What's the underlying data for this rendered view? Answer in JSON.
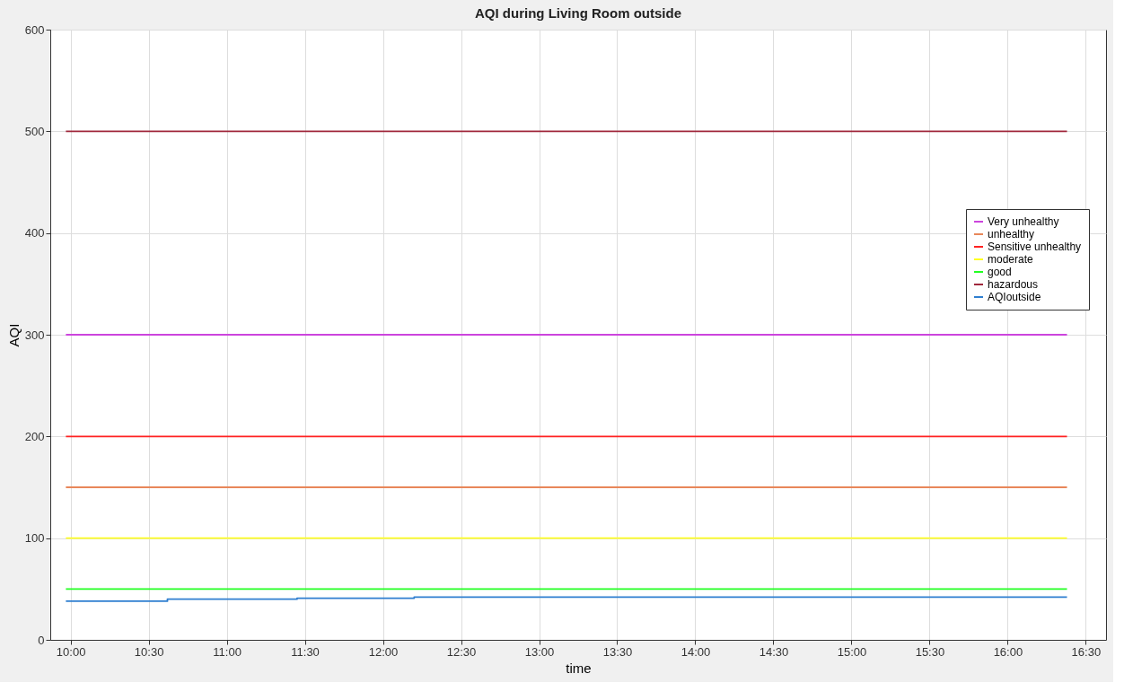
{
  "chart_data": {
    "type": "line",
    "title": "AQI during Living Room outside",
    "xlabel": "time",
    "ylabel": "AQI",
    "xlim": [
      9.87,
      16.63
    ],
    "ylim": [
      0,
      600
    ],
    "xticks": [
      {
        "value": 10,
        "label": "10:00"
      },
      {
        "value": 10.5,
        "label": "10:30"
      },
      {
        "value": 11,
        "label": "11:00"
      },
      {
        "value": 11.5,
        "label": "11:30"
      },
      {
        "value": 12,
        "label": "12:00"
      },
      {
        "value": 12.5,
        "label": "12:30"
      },
      {
        "value": 13,
        "label": "13:00"
      },
      {
        "value": 13.5,
        "label": "13:30"
      },
      {
        "value": 14,
        "label": "14:00"
      },
      {
        "value": 14.5,
        "label": "14:30"
      },
      {
        "value": 15,
        "label": "15:00"
      },
      {
        "value": 15.5,
        "label": "15:30"
      },
      {
        "value": 16,
        "label": "16:00"
      },
      {
        "value": 16.5,
        "label": "16:30"
      }
    ],
    "yticks": [
      0,
      100,
      200,
      300,
      400,
      500,
      600
    ],
    "grid": true,
    "legend": "top right",
    "series": [
      {
        "name": "Very unhealthy",
        "color": "#cc44dd",
        "x": [
          9.97,
          16.38
        ],
        "values": [
          300,
          300
        ]
      },
      {
        "name": "unhealthy",
        "color": "#e8875a",
        "x": [
          9.97,
          16.38
        ],
        "values": [
          150,
          150
        ]
      },
      {
        "name": "Sensitive unhealthy",
        "color": "#ff2222",
        "x": [
          9.97,
          16.38
        ],
        "values": [
          200,
          200
        ]
      },
      {
        "name": "moderate",
        "color": "#ffff22",
        "x": [
          9.97,
          16.38
        ],
        "values": [
          100,
          100
        ]
      },
      {
        "name": "good",
        "color": "#22ff22",
        "x": [
          9.97,
          16.38
        ],
        "values": [
          50,
          50
        ]
      },
      {
        "name": "hazardous",
        "color": "#a0283c",
        "x": [
          9.97,
          16.38
        ],
        "values": [
          500,
          500
        ]
      },
      {
        "name": "AQIoutside",
        "color": "#2f7fd0",
        "type": "step",
        "x": [
          9.97,
          10.62,
          11.45,
          12.2,
          16.38
        ],
        "values": [
          38,
          40,
          41,
          42,
          42
        ]
      }
    ]
  }
}
